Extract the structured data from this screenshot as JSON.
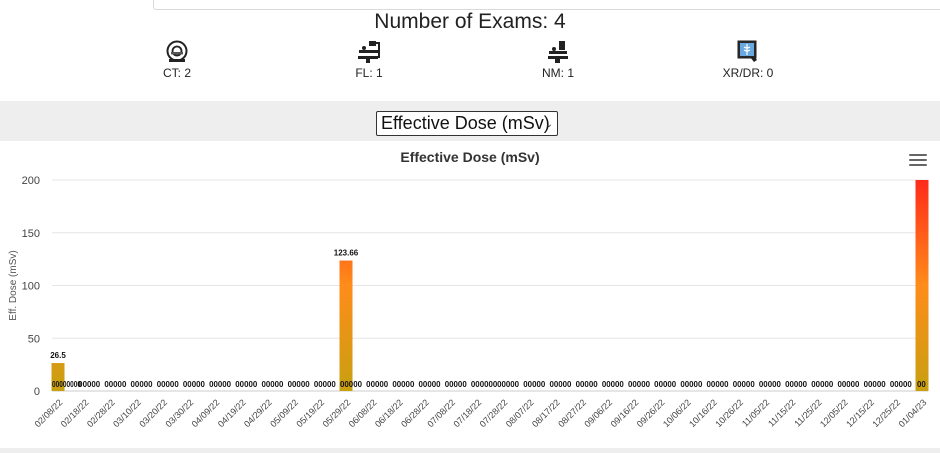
{
  "header": {
    "exam_count_title": "Number of Exams: 4"
  },
  "modalities": [
    {
      "label": "CT: 2",
      "icon": "ct-scanner-icon"
    },
    {
      "label": "FL: 1",
      "icon": "fluoroscopy-icon"
    },
    {
      "label": "NM: 1",
      "icon": "nuclear-medicine-icon"
    },
    {
      "label": "XR/DR: 0",
      "icon": "xray-icon"
    }
  ],
  "metric_select": {
    "selected": "Effective Dose (mSv)"
  },
  "colors": {
    "bar_low": "#c8a010",
    "bar_mid": "#ff8c1a",
    "bar_high": "#ff2a1a",
    "grid": "#e6e6e6",
    "axis_text": "#444444"
  },
  "chart_data": {
    "type": "bar",
    "title": "Effective Dose (mSv)",
    "ylabel": "Eff. Dose (mSv)",
    "xlabel": "",
    "ylim": [
      0,
      200
    ],
    "yticks": [
      0,
      50,
      100,
      150,
      200
    ],
    "xticks": [
      "02/08/22",
      "02/18/22",
      "02/28/22",
      "03/10/22",
      "03/20/22",
      "03/30/22",
      "04/09/22",
      "04/19/22",
      "04/29/22",
      "05/09/22",
      "05/19/22",
      "05/29/22",
      "06/08/22",
      "06/18/22",
      "06/28/22",
      "07/08/22",
      "07/18/22",
      "07/28/22",
      "08/07/22",
      "08/17/22",
      "08/27/22",
      "09/06/22",
      "09/16/22",
      "09/26/22",
      "10/06/22",
      "10/16/22",
      "10/26/22",
      "11/05/22",
      "11/15/22",
      "11/25/22",
      "12/05/22",
      "12/15/22",
      "12/25/22",
      "01/04/23"
    ],
    "series": [
      {
        "values": [
          26.5,
          0,
          0,
          0,
          0,
          0,
          0,
          0,
          0,
          0,
          0,
          123.66,
          0,
          0,
          0,
          0,
          0,
          0,
          0,
          0,
          0,
          0,
          0,
          0,
          0,
          0,
          0,
          0,
          0,
          0,
          0,
          0,
          0,
          200
        ],
        "data_labels": [
          "26.5",
          "",
          "",
          "",
          "",
          "",
          "",
          "",
          "",
          "",
          "",
          "123.66",
          "",
          "",
          "",
          "",
          "",
          "",
          "",
          "",
          "",
          "",
          "",
          "",
          "",
          "",
          "",
          "",
          "",
          "",
          "",
          "",
          "",
          ""
        ]
      }
    ],
    "zero_label_groups": [
      "00000000",
      "00000",
      "00000",
      "00000",
      "00000",
      "00000",
      "00000",
      "00000",
      "00000",
      "00000",
      "00000",
      "00000",
      "00000",
      "00000",
      "00000",
      "00000",
      "000000",
      "00000",
      "00000",
      "00000",
      "00000",
      "00000",
      "00000",
      "00000",
      "00000",
      "00000",
      "00000",
      "00000",
      "00000",
      "00000",
      "00000",
      "00000",
      "00000",
      "00"
    ],
    "grid": true,
    "legend": "none"
  }
}
